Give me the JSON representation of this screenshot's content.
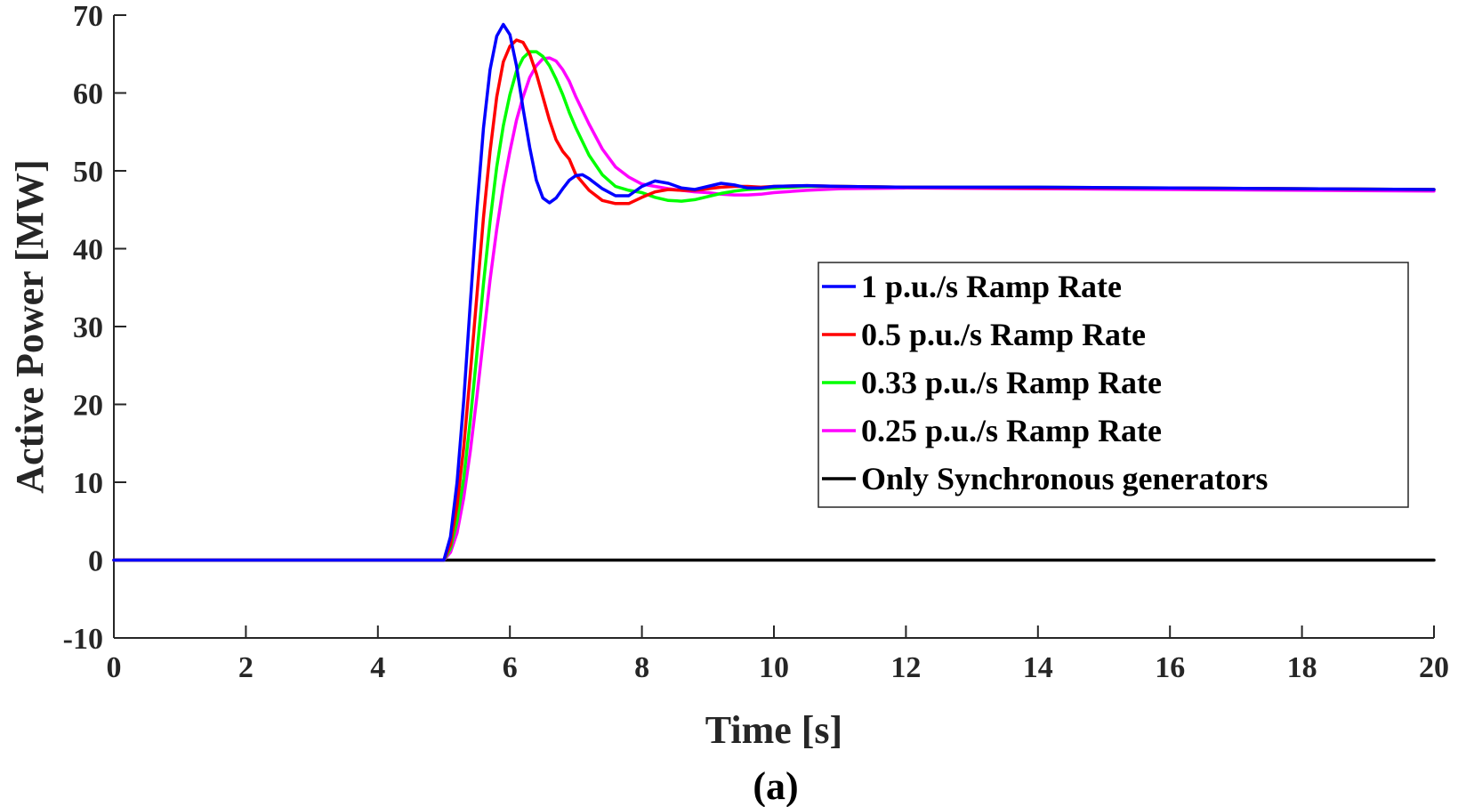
{
  "chart_data": {
    "type": "line",
    "title": "",
    "caption": "(a)",
    "xlabel": "Time [s]",
    "ylabel": "Active Power [MW]",
    "xlim": [
      0,
      20
    ],
    "ylim": [
      -10,
      70
    ],
    "xticks": [
      0,
      2,
      4,
      6,
      8,
      10,
      12,
      14,
      16,
      18,
      20
    ],
    "yticks": [
      -10,
      0,
      10,
      20,
      30,
      40,
      50,
      60,
      70
    ],
    "grid": false,
    "legend_position": "center-right",
    "series": [
      {
        "name": "1 p.u./s Ramp Rate",
        "color": "#0000ff",
        "x": [
          0,
          5.0,
          5.1,
          5.2,
          5.3,
          5.4,
          5.5,
          5.6,
          5.7,
          5.8,
          5.9,
          6.0,
          6.1,
          6.2,
          6.3,
          6.4,
          6.5,
          6.6,
          6.7,
          6.8,
          6.9,
          7.0,
          7.1,
          7.2,
          7.4,
          7.6,
          7.8,
          8.0,
          8.2,
          8.4,
          8.6,
          8.8,
          9.0,
          9.2,
          9.4,
          9.6,
          9.8,
          10.0,
          10.5,
          11.0,
          12,
          14,
          16,
          18,
          20
        ],
        "y": [
          0,
          0,
          3.0,
          10.0,
          20.5,
          33.0,
          45.0,
          55.5,
          63.0,
          67.3,
          68.8,
          67.5,
          63.5,
          58.0,
          53.0,
          48.8,
          46.5,
          45.9,
          46.5,
          47.7,
          48.8,
          49.4,
          49.5,
          49.0,
          47.7,
          46.8,
          46.8,
          48.0,
          48.7,
          48.4,
          47.8,
          47.6,
          48.0,
          48.4,
          48.2,
          47.8,
          47.8,
          48.0,
          48.1,
          48.0,
          47.9,
          47.9,
          47.8,
          47.7,
          47.6
        ]
      },
      {
        "name": "0.5 p.u./s Ramp Rate",
        "color": "#ff0000",
        "x": [
          0,
          5.0,
          5.1,
          5.2,
          5.3,
          5.4,
          5.5,
          5.6,
          5.7,
          5.8,
          5.9,
          6.0,
          6.1,
          6.2,
          6.3,
          6.4,
          6.5,
          6.6,
          6.7,
          6.8,
          6.9,
          7.0,
          7.1,
          7.2,
          7.4,
          7.6,
          7.8,
          8.0,
          8.2,
          8.4,
          8.6,
          8.8,
          9.0,
          9.2,
          9.4,
          9.6,
          9.8,
          10.0,
          10.5,
          11.0,
          12,
          14,
          16,
          18,
          20
        ],
        "y": [
          0,
          0,
          2.0,
          7.0,
          14.5,
          24.0,
          34.0,
          44.0,
          52.5,
          59.5,
          64.0,
          66.0,
          66.8,
          66.5,
          65.0,
          62.5,
          59.5,
          56.5,
          54.0,
          52.5,
          51.5,
          49.5,
          48.5,
          47.5,
          46.2,
          45.8,
          45.8,
          46.6,
          47.3,
          47.6,
          47.5,
          47.5,
          47.7,
          47.9,
          48.0,
          48.0,
          47.9,
          48.0,
          48.1,
          48.0,
          47.9,
          47.8,
          47.8,
          47.7,
          47.6
        ]
      },
      {
        "name": "0.33 p.u./s Ramp Rate",
        "color": "#00ff00",
        "x": [
          0,
          5.0,
          5.1,
          5.2,
          5.3,
          5.4,
          5.5,
          5.6,
          5.7,
          5.8,
          5.9,
          6.0,
          6.1,
          6.2,
          6.3,
          6.4,
          6.5,
          6.6,
          6.7,
          6.8,
          6.9,
          7.0,
          7.2,
          7.4,
          7.6,
          7.8,
          8.0,
          8.2,
          8.4,
          8.6,
          8.8,
          9.0,
          9.2,
          9.4,
          9.6,
          9.8,
          10.0,
          10.5,
          11.0,
          12,
          14,
          16,
          18,
          20
        ],
        "y": [
          0,
          0,
          1.5,
          5.0,
          10.5,
          18.0,
          26.5,
          35.5,
          43.5,
          50.5,
          55.8,
          59.8,
          62.8,
          64.5,
          65.3,
          65.3,
          64.7,
          63.5,
          61.8,
          59.8,
          57.5,
          55.5,
          52.0,
          49.5,
          48.0,
          47.5,
          47.2,
          46.6,
          46.2,
          46.1,
          46.3,
          46.7,
          47.1,
          47.4,
          47.6,
          47.7,
          47.8,
          48.0,
          48.0,
          47.9,
          47.9,
          47.8,
          47.7,
          47.6
        ]
      },
      {
        "name": "0.25 p.u./s Ramp Rate",
        "color": "#ff00ff",
        "x": [
          0,
          5.0,
          5.1,
          5.2,
          5.3,
          5.4,
          5.5,
          5.6,
          5.7,
          5.8,
          5.9,
          6.0,
          6.1,
          6.2,
          6.3,
          6.4,
          6.5,
          6.6,
          6.7,
          6.8,
          6.9,
          7.0,
          7.2,
          7.4,
          7.6,
          7.8,
          8.0,
          8.2,
          8.4,
          8.6,
          8.8,
          9.0,
          9.2,
          9.4,
          9.6,
          9.8,
          10.0,
          10.5,
          11.0,
          12,
          14,
          16,
          18,
          20
        ],
        "y": [
          0,
          0,
          1.0,
          3.5,
          8.0,
          14.0,
          21.0,
          28.5,
          36.0,
          42.5,
          48.0,
          52.5,
          56.5,
          59.5,
          62.0,
          63.5,
          64.4,
          64.5,
          64.1,
          63.0,
          61.5,
          59.5,
          56.0,
          52.8,
          50.5,
          49.2,
          48.3,
          48.0,
          47.7,
          47.5,
          47.3,
          47.2,
          47.0,
          46.9,
          46.9,
          47.0,
          47.2,
          47.5,
          47.7,
          47.8,
          47.7,
          47.6,
          47.5,
          47.4
        ]
      },
      {
        "name": "Only Synchronous generators",
        "color": "#000000",
        "x": [
          0,
          20
        ],
        "y": [
          0,
          0
        ]
      }
    ]
  }
}
